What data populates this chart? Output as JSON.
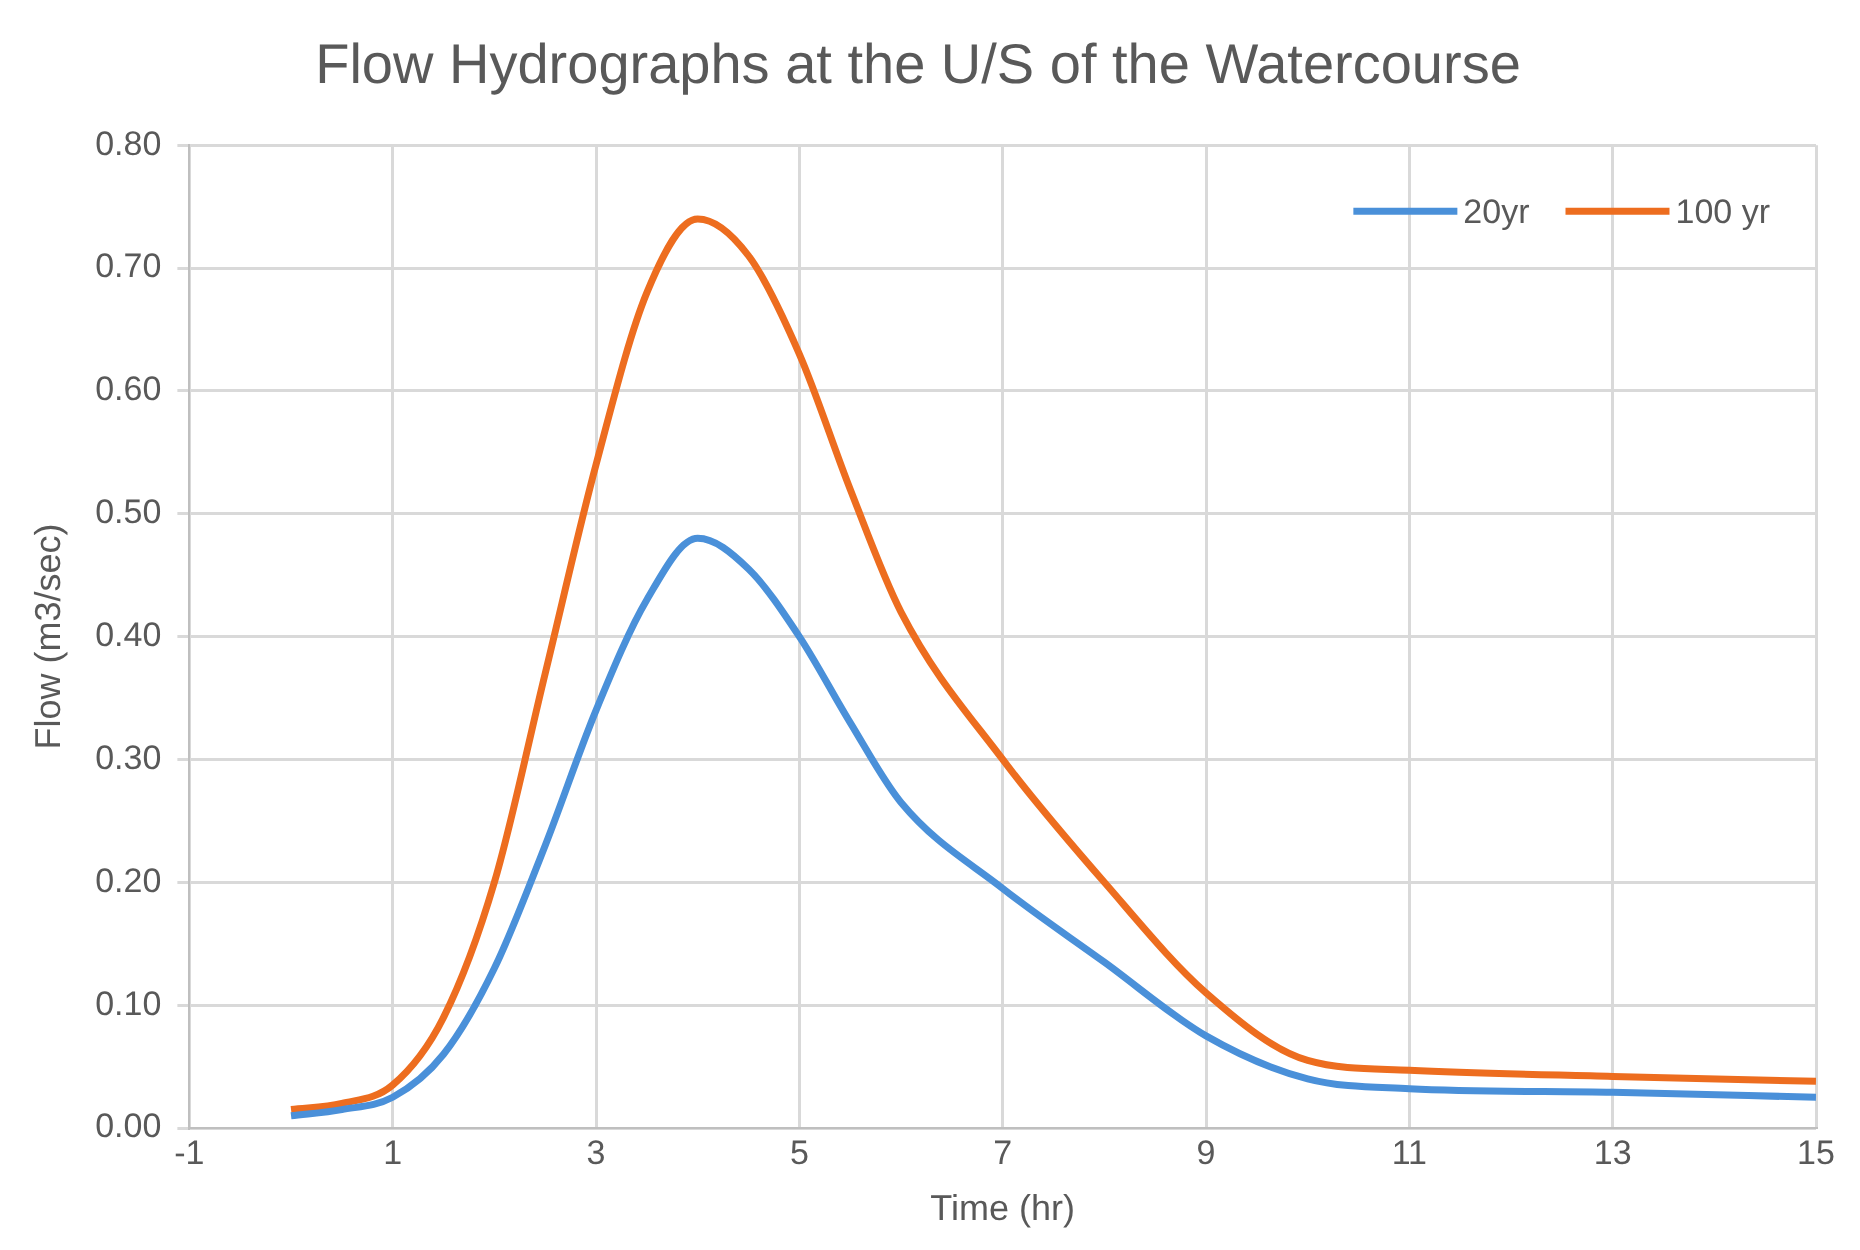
{
  "chart_data": {
    "type": "line",
    "title": "Flow Hydrographs at the U/S of the Watercourse",
    "xlabel": "Time (hr)",
    "ylabel": "Flow (m3/sec)",
    "x": [
      0,
      0.5,
      1,
      1.5,
      2,
      2.5,
      3,
      3.5,
      4,
      4.5,
      5,
      5.5,
      6,
      7,
      8,
      9,
      10,
      11,
      13,
      15
    ],
    "series": [
      {
        "name": "20yr",
        "color": "#4a90d9",
        "values": [
          0.01,
          0.015,
          0.025,
          0.06,
          0.13,
          0.23,
          0.34,
          0.43,
          0.48,
          0.455,
          0.4,
          0.33,
          0.265,
          0.195,
          0.135,
          0.075,
          0.04,
          0.032,
          0.029,
          0.025
        ]
      },
      {
        "name": "100 yr",
        "color": "#ed6d1f",
        "values": [
          0.015,
          0.02,
          0.035,
          0.09,
          0.2,
          0.37,
          0.54,
          0.68,
          0.74,
          0.71,
          0.63,
          0.52,
          0.42,
          0.3,
          0.2,
          0.11,
          0.055,
          0.047,
          0.042,
          0.038
        ]
      }
    ],
    "xlim": [
      -1,
      15
    ],
    "xticks": [
      -1,
      1,
      3,
      5,
      7,
      9,
      11,
      13,
      15
    ],
    "ylim": [
      0,
      0.8
    ],
    "yticks": [
      {
        "value": 0,
        "label": "0.00"
      },
      {
        "value": 0.1,
        "label": "0.10"
      },
      {
        "value": 0.2,
        "label": "0.20"
      },
      {
        "value": 0.3,
        "label": "0.30"
      },
      {
        "value": 0.4,
        "label": "0.40"
      },
      {
        "value": 0.5,
        "label": "0.50"
      },
      {
        "value": 0.6,
        "label": "0.60"
      },
      {
        "value": 0.7,
        "label": "0.70"
      },
      {
        "value": 0.8,
        "label": "0.80"
      }
    ],
    "grid": true,
    "legend": "top right",
    "marker": "none",
    "line_style": "solid"
  }
}
